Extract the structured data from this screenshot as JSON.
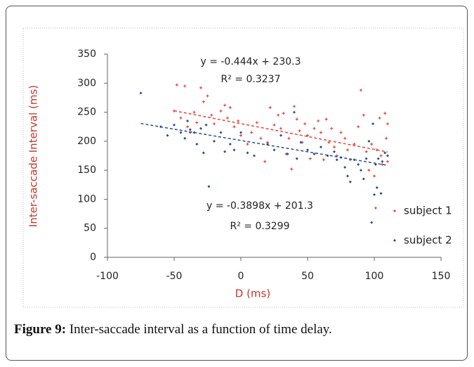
{
  "chart_data": {
    "type": "scatter",
    "x_label": "D (ms)",
    "y_label": "Inter-saccade Interval (ms)",
    "xlim": [
      -100,
      150
    ],
    "xticks": [
      -100,
      -50,
      0,
      50,
      100,
      150
    ],
    "ylim": [
      0,
      350
    ],
    "yticks": [
      0,
      50,
      100,
      150,
      200,
      250,
      300,
      350
    ],
    "legend": "right",
    "series": [
      {
        "name": "subject 1",
        "color": "#e0473f",
        "marker": "plus",
        "equation": "y = -0.444x + 230.3",
        "r_squared": "R² = 0.3237",
        "x": [
          -50,
          -48,
          -45,
          -42,
          -40,
          -38,
          -35,
          -33,
          -30,
          -28,
          -25,
          -22,
          -20,
          -15,
          -12,
          -10,
          -8,
          -5,
          -2,
          0,
          5,
          8,
          12,
          15,
          18,
          20,
          22,
          25,
          28,
          30,
          32,
          34,
          36,
          38,
          40,
          42,
          44,
          46,
          48,
          50,
          52,
          55,
          58,
          60,
          62,
          64,
          66,
          68,
          70,
          72,
          75,
          78,
          80,
          82,
          85,
          88,
          90,
          92,
          94,
          96,
          98,
          100,
          101,
          102,
          104,
          105,
          106,
          108,
          109,
          110,
          110
        ],
        "values": [
          252,
          297,
          240,
          295,
          225,
          215,
          250,
          232,
          292,
          268,
          278,
          245,
          230,
          252,
          262,
          240,
          258,
          225,
          235,
          210,
          195,
          215,
          232,
          205,
          165,
          198,
          258,
          228,
          245,
          222,
          248,
          178,
          205,
          152,
          260,
          238,
          218,
          198,
          230,
          210,
          170,
          222,
          235,
          215,
          168,
          238,
          198,
          222,
          190,
          175,
          215,
          205,
          185,
          168,
          195,
          225,
          288,
          245,
          182,
          150,
          195,
          140,
          85,
          185,
          240,
          175,
          160,
          248,
          205,
          165,
          230
        ]
      },
      {
        "name": "subject 2",
        "color": "#2a4d8f",
        "marker": "diamond",
        "equation": "y = -0.3898x + 201.3",
        "r_squared": "R² = 0.3299",
        "x": [
          -75,
          -60,
          -55,
          -50,
          -45,
          -42,
          -40,
          -38,
          -35,
          -33,
          -30,
          -28,
          -26,
          -24,
          -20,
          -15,
          -12,
          -8,
          -5,
          0,
          5,
          10,
          20,
          25,
          30,
          35,
          40,
          42,
          45,
          50,
          55,
          60,
          65,
          70,
          72,
          75,
          78,
          80,
          82,
          85,
          88,
          90,
          92,
          94,
          96,
          98,
          99,
          100,
          101,
          102,
          103,
          105,
          106,
          108,
          110
        ],
        "values": [
          283,
          225,
          210,
          228,
          215,
          205,
          235,
          220,
          215,
          195,
          222,
          180,
          228,
          122,
          200,
          215,
          182,
          195,
          185,
          215,
          180,
          175,
          195,
          185,
          210,
          178,
          250,
          170,
          198,
          185,
          178,
          190,
          175,
          182,
          168,
          172,
          155,
          140,
          130,
          168,
          160,
          150,
          135,
          170,
          200,
          60,
          230,
          108,
          160,
          120,
          170,
          110,
          165,
          180,
          175
        ]
      }
    ]
  },
  "caption": {
    "label": "Figure 9:",
    "text": "Inter-saccade interval as a function of time delay."
  }
}
